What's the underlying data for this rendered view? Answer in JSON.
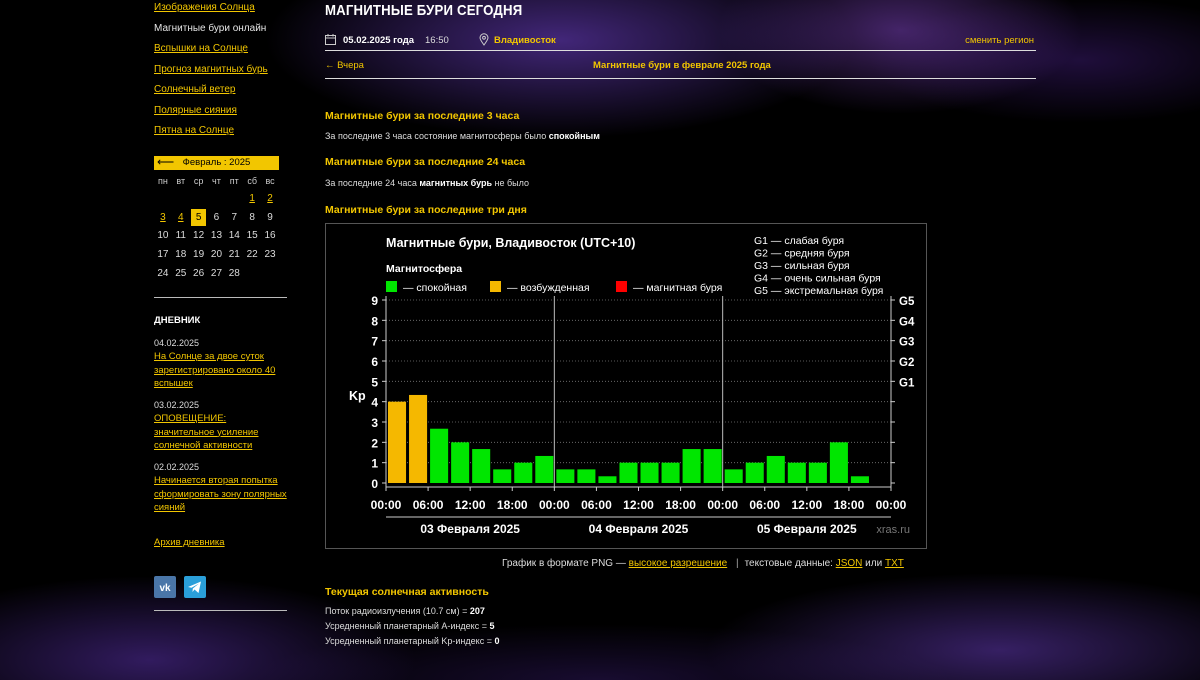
{
  "page_title": "МАГНИТНЫЕ БУРИ СЕГОДНЯ",
  "sidebar": {
    "menu": [
      {
        "label": "Изображения Солнца",
        "current": false
      },
      {
        "label": "Магнитные бури онлайн",
        "current": true
      },
      {
        "label": "Вспышки на Солнце",
        "current": false
      },
      {
        "label": "Прогноз магнитных бурь",
        "current": false
      },
      {
        "label": "Солнечный ветер",
        "current": false
      },
      {
        "label": "Полярные сияния",
        "current": false
      },
      {
        "label": "Пятна на Солнце",
        "current": false
      }
    ],
    "calendar": {
      "arrow": "⟵",
      "title": "Февраль : 2025",
      "weekdays": [
        "пн",
        "вт",
        "ср",
        "чт",
        "пт",
        "сб",
        "вс"
      ],
      "weeks": [
        [
          "",
          "",
          "",
          "",
          "",
          "1",
          "2"
        ],
        [
          "3",
          "4",
          "5",
          "6",
          "7",
          "8",
          "9"
        ],
        [
          "10",
          "11",
          "12",
          "13",
          "14",
          "15",
          "16"
        ],
        [
          "17",
          "18",
          "19",
          "20",
          "21",
          "22",
          "23"
        ],
        [
          "24",
          "25",
          "26",
          "27",
          "28",
          "",
          ""
        ]
      ],
      "linked": [
        "1",
        "2",
        "3",
        "4"
      ],
      "today": "5"
    },
    "diary": {
      "heading": "ДНЕВНИК",
      "entries": [
        {
          "date": "04.02.2025",
          "text": "На Солнце за двое суток зарегистрировано около 40 вспышек"
        },
        {
          "date": "03.02.2025",
          "text": "ОПОВЕЩЕНИЕ: значительное усиление солнечной активности"
        },
        {
          "date": "02.02.2025",
          "text": "Начинается вторая попытка сформировать зону полярных сияний"
        }
      ],
      "archive": "Архив дневника"
    },
    "social": {
      "vk": "vk",
      "telegram": "telegram"
    }
  },
  "header": {
    "date": "05.02.2025 года",
    "time": "16:50",
    "city": "Владивосток",
    "change_region": "сменить регион",
    "prev": "← Вчера",
    "month_link": "Магнитные бури в феврале 2025 года"
  },
  "sections": {
    "s3h_title": "Магнитные бури за последние 3 часа",
    "s3h_pre": "За последние 3 часа состояние магнитосферы было ",
    "s3h_bold": "спокойным",
    "s24_title": "Магнитные бури за последние 24 часа",
    "s24_pre": "За последние 24 часа ",
    "s24_bold": "магнитных бурь",
    "s24_post": " не было",
    "s3d_title": "Магнитные бури за последние три дня"
  },
  "chart_data": {
    "type": "bar",
    "title": "Магнитные бури, Владивосток (UTC+10)",
    "legend_title": "Магнитосфера",
    "legend": [
      {
        "label": "— спокойная",
        "color": "#00e600"
      },
      {
        "label": "— возбужденная",
        "color": "#f5b800"
      },
      {
        "label": "— магнитная буря",
        "color": "#ff0000"
      }
    ],
    "g_scale": [
      "G1 — слабая буря",
      "G2 — средняя буря",
      "G3 — сильная буря",
      "G4 — очень сильная буря",
      "G5 — экстремальная буря"
    ],
    "ylabel": "Kp",
    "ylim": [
      0,
      9
    ],
    "yticks": [
      "0",
      "1",
      "2",
      "3",
      "4",
      "5",
      "6",
      "7",
      "8",
      "9"
    ],
    "g_ticks": [
      {
        "label": "G1",
        "kp": 5
      },
      {
        "label": "G2",
        "kp": 6
      },
      {
        "label": "G3",
        "kp": 7
      },
      {
        "label": "G4",
        "kp": 8
      },
      {
        "label": "G5",
        "kp": 9
      }
    ],
    "xticks": [
      "00:00",
      "06:00",
      "12:00",
      "18:00",
      "00:00",
      "06:00",
      "12:00",
      "18:00",
      "00:00",
      "06:00",
      "12:00",
      "18:00",
      "00:00"
    ],
    "days": [
      "03 Февраля 2025",
      "04 Февраля 2025",
      "05 Февраля 2025"
    ],
    "values": [
      4.0,
      4.33,
      2.67,
      2.0,
      1.67,
      0.67,
      1.0,
      1.33,
      0.67,
      0.67,
      0.33,
      1.0,
      1.0,
      1.0,
      1.67,
      1.67,
      0.67,
      1.0,
      1.33,
      1.0,
      1.0,
      2.0,
      0.33
    ],
    "watermark": "xras.ru"
  },
  "under_chart": {
    "pre": "График в формате PNG — ",
    "hires": "высокое разрешение",
    "sep": "|",
    "text": "текстовые данные: ",
    "json": "JSON",
    "or": " или ",
    "txt": "TXT"
  },
  "activity": {
    "title": "Текущая солнечная активность",
    "lines": [
      {
        "label": "Поток радиоизлучения (10.7 см) = ",
        "value": "207"
      },
      {
        "label": "Усредненный планетарный A-индекс = ",
        "value": "5"
      },
      {
        "label": "Усредненный планетарный Kp-индекс = ",
        "value": "0"
      }
    ]
  }
}
